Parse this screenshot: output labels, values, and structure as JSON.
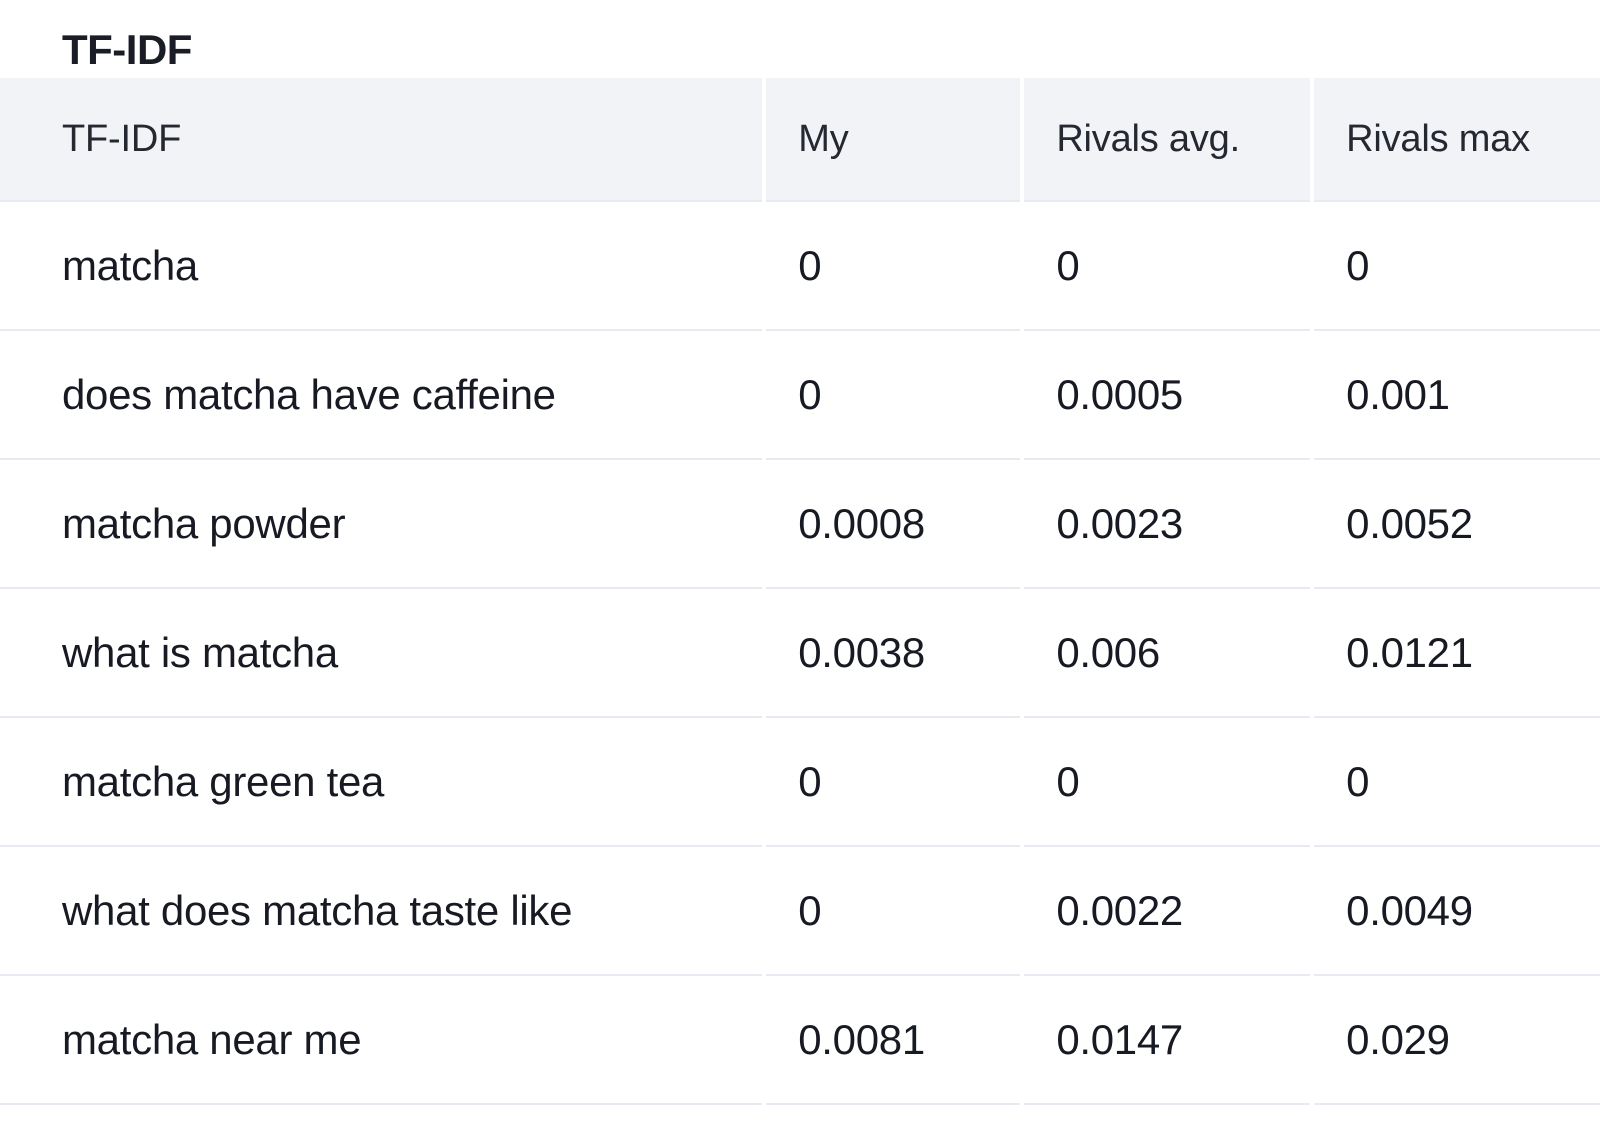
{
  "section": {
    "title": "TF-IDF"
  },
  "table": {
    "columns": [
      "TF-IDF",
      "My",
      "Rivals avg.",
      "Rivals max"
    ],
    "rows": [
      {
        "keyword": "matcha",
        "my": "0",
        "rivals_avg": "0",
        "rivals_max": "0"
      },
      {
        "keyword": "does matcha have caffeine",
        "my": "0",
        "rivals_avg": "0.0005",
        "rivals_max": "0.001"
      },
      {
        "keyword": "matcha powder",
        "my": "0.0008",
        "rivals_avg": "0.0023",
        "rivals_max": "0.0052"
      },
      {
        "keyword": "what is matcha",
        "my": "0.0038",
        "rivals_avg": "0.006",
        "rivals_max": "0.0121"
      },
      {
        "keyword": "matcha green tea",
        "my": "0",
        "rivals_avg": "0",
        "rivals_max": "0"
      },
      {
        "keyword": "what does matcha taste like",
        "my": "0",
        "rivals_avg": "0.0022",
        "rivals_max": "0.0049"
      },
      {
        "keyword": "matcha near me",
        "my": "0.0081",
        "rivals_avg": "0.0147",
        "rivals_max": "0.029"
      }
    ]
  },
  "colors": {
    "page_bg": "#ffffff",
    "header_bg": "#f2f3f7",
    "divider": "#e8eaf1",
    "title_color": "#1a1d26",
    "header_text": "#252831",
    "text": "#171a23"
  }
}
